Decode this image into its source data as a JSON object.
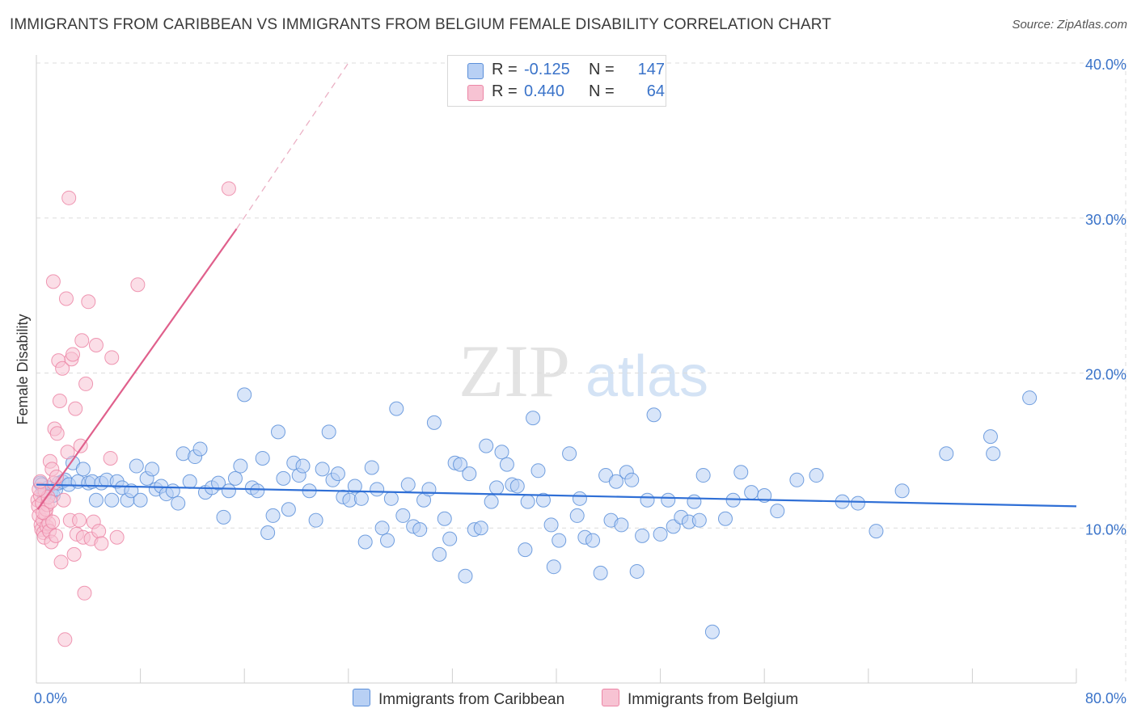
{
  "title": "IMMIGRANTS FROM CARIBBEAN VS IMMIGRANTS FROM BELGIUM FEMALE DISABILITY CORRELATION CHART",
  "source": "Source: ZipAtlas.com",
  "watermark": {
    "zip": "ZIP",
    "atlas": "atlas"
  },
  "colors": {
    "blue": "#5b8fd9",
    "blue_fill": "#b8d0f4",
    "blue_line": "#2f6fd6",
    "pink": "#ec86a6",
    "pink_fill": "#f7c3d3",
    "pink_line": "#e0608c",
    "axis_label": "#3a73c9"
  },
  "legend": {
    "rows": [
      {
        "r_label": "R =",
        "r_value": "-0.125",
        "n_label": "N =",
        "n_value": "147"
      },
      {
        "r_label": "R =",
        "r_value": "0.440",
        "n_label": "N =",
        "n_value": "64"
      }
    ]
  },
  "bottom_legend": {
    "series1": "Immigrants from Caribbean",
    "series2": "Immigrants from Belgium"
  },
  "chart_data": {
    "type": "scatter",
    "xlabel": "",
    "ylabel": "Female Disability",
    "xlim": [
      0,
      80
    ],
    "ylim": [
      0,
      40
    ],
    "x_ticks": [
      "0.0%",
      "80.0%"
    ],
    "y_ticks": [
      {
        "value": 10,
        "label": "10.0%"
      },
      {
        "value": 20,
        "label": "20.0%"
      },
      {
        "value": 30,
        "label": "30.0%"
      },
      {
        "value": 40,
        "label": "40.0%"
      }
    ],
    "grid": true,
    "series": [
      {
        "name": "Immigrants from Caribbean",
        "color": "#5b8fd9",
        "r": -0.125,
        "n": 147,
        "trend": {
          "x1": 0,
          "y1": 12.8,
          "x2": 80,
          "y2": 11.4
        },
        "points": [
          [
            0.3,
            12.9
          ],
          [
            0.5,
            12.4
          ],
          [
            0.7,
            12.2
          ],
          [
            0.9,
            12.6
          ],
          [
            1.1,
            12.3
          ],
          [
            1.3,
            12.1
          ],
          [
            1.5,
            12.5
          ],
          [
            1.7,
            12.9
          ],
          [
            2.0,
            13.0
          ],
          [
            2.2,
            13.1
          ],
          [
            2.5,
            12.8
          ],
          [
            2.8,
            14.2
          ],
          [
            3.2,
            13.0
          ],
          [
            3.6,
            13.8
          ],
          [
            4.0,
            12.9
          ],
          [
            4.3,
            13.0
          ],
          [
            4.6,
            11.8
          ],
          [
            5.0,
            12.9
          ],
          [
            5.4,
            13.1
          ],
          [
            5.8,
            11.8
          ],
          [
            6.2,
            13.0
          ],
          [
            6.6,
            12.6
          ],
          [
            7.0,
            11.8
          ],
          [
            7.3,
            12.4
          ],
          [
            7.7,
            14.0
          ],
          [
            8.0,
            11.8
          ],
          [
            8.5,
            13.2
          ],
          [
            8.9,
            13.8
          ],
          [
            9.2,
            12.5
          ],
          [
            9.6,
            12.7
          ],
          [
            10.0,
            12.2
          ],
          [
            10.5,
            12.4
          ],
          [
            10.9,
            11.6
          ],
          [
            11.3,
            14.8
          ],
          [
            11.8,
            13.0
          ],
          [
            12.2,
            14.6
          ],
          [
            12.6,
            15.1
          ],
          [
            13.0,
            12.3
          ],
          [
            13.5,
            12.6
          ],
          [
            14.0,
            12.9
          ],
          [
            14.4,
            10.7
          ],
          [
            14.8,
            12.4
          ],
          [
            15.3,
            13.2
          ],
          [
            15.7,
            14.0
          ],
          [
            16.0,
            18.6
          ],
          [
            16.6,
            12.6
          ],
          [
            17.0,
            12.4
          ],
          [
            17.4,
            14.5
          ],
          [
            17.8,
            9.7
          ],
          [
            18.2,
            10.8
          ],
          [
            18.6,
            16.2
          ],
          [
            19.0,
            13.2
          ],
          [
            19.4,
            11.2
          ],
          [
            19.8,
            14.2
          ],
          [
            20.2,
            13.4
          ],
          [
            20.5,
            14.0
          ],
          [
            21.0,
            12.4
          ],
          [
            21.5,
            10.5
          ],
          [
            22.0,
            13.8
          ],
          [
            22.5,
            16.2
          ],
          [
            22.8,
            13.1
          ],
          [
            23.2,
            13.5
          ],
          [
            23.6,
            12.0
          ],
          [
            24.1,
            11.8
          ],
          [
            24.5,
            12.7
          ],
          [
            25.0,
            11.9
          ],
          [
            25.3,
            9.1
          ],
          [
            25.8,
            13.9
          ],
          [
            26.2,
            12.5
          ],
          [
            26.6,
            10.0
          ],
          [
            27.0,
            9.2
          ],
          [
            27.3,
            11.9
          ],
          [
            27.7,
            17.7
          ],
          [
            28.2,
            10.8
          ],
          [
            28.6,
            12.8
          ],
          [
            29.0,
            10.1
          ],
          [
            29.5,
            9.9
          ],
          [
            29.8,
            11.8
          ],
          [
            30.2,
            12.5
          ],
          [
            30.6,
            16.8
          ],
          [
            31.0,
            8.3
          ],
          [
            31.4,
            10.6
          ],
          [
            31.8,
            9.3
          ],
          [
            32.2,
            14.2
          ],
          [
            32.6,
            14.1
          ],
          [
            33.0,
            6.9
          ],
          [
            33.3,
            13.5
          ],
          [
            33.7,
            9.9
          ],
          [
            34.2,
            10.0
          ],
          [
            34.6,
            15.3
          ],
          [
            35.0,
            11.7
          ],
          [
            35.4,
            12.6
          ],
          [
            35.8,
            14.9
          ],
          [
            36.2,
            14.1
          ],
          [
            36.6,
            12.8
          ],
          [
            37.0,
            12.7
          ],
          [
            37.6,
            8.6
          ],
          [
            37.8,
            11.7
          ],
          [
            38.2,
            17.1
          ],
          [
            38.6,
            13.7
          ],
          [
            39.0,
            11.8
          ],
          [
            39.6,
            10.2
          ],
          [
            39.8,
            7.5
          ],
          [
            40.2,
            9.2
          ],
          [
            41.0,
            14.8
          ],
          [
            41.6,
            10.8
          ],
          [
            41.8,
            11.9
          ],
          [
            42.2,
            9.4
          ],
          [
            42.8,
            9.2
          ],
          [
            43.4,
            7.1
          ],
          [
            43.8,
            13.4
          ],
          [
            44.2,
            10.5
          ],
          [
            44.6,
            13.0
          ],
          [
            45.0,
            10.2
          ],
          [
            45.4,
            13.6
          ],
          [
            45.8,
            13.1
          ],
          [
            46.2,
            7.2
          ],
          [
            46.6,
            9.5
          ],
          [
            47.0,
            11.8
          ],
          [
            47.5,
            17.3
          ],
          [
            48.0,
            9.6
          ],
          [
            48.6,
            11.8
          ],
          [
            49.0,
            10.1
          ],
          [
            49.6,
            10.7
          ],
          [
            50.2,
            10.4
          ],
          [
            50.6,
            11.7
          ],
          [
            51.0,
            10.5
          ],
          [
            51.3,
            13.4
          ],
          [
            52.0,
            3.3
          ],
          [
            53.0,
            10.6
          ],
          [
            53.6,
            11.8
          ],
          [
            54.2,
            13.6
          ],
          [
            55.0,
            12.3
          ],
          [
            56.0,
            12.1
          ],
          [
            57.0,
            11.1
          ],
          [
            58.5,
            13.1
          ],
          [
            60.0,
            13.4
          ],
          [
            62.0,
            11.7
          ],
          [
            63.2,
            11.6
          ],
          [
            64.6,
            9.8
          ],
          [
            66.6,
            12.4
          ],
          [
            70.0,
            14.8
          ],
          [
            73.4,
            15.9
          ],
          [
            73.6,
            14.8
          ],
          [
            76.4,
            18.4
          ],
          [
            0.4,
            12.8
          ],
          [
            0.6,
            12.1
          ]
        ]
      },
      {
        "name": "Immigrants from Belgium",
        "color": "#ec86a6",
        "r": 0.44,
        "n": 64,
        "trend": {
          "x1": 0.1,
          "y1": 11.2,
          "x2": 15.4,
          "y2": 29.3,
          "dash_x2": 24,
          "dash_y2": 40
        },
        "points": [
          [
            0.1,
            11.8
          ],
          [
            0.15,
            11.4
          ],
          [
            0.2,
            10.8
          ],
          [
            0.3,
            12.1
          ],
          [
            0.35,
            10.2
          ],
          [
            0.4,
            9.9
          ],
          [
            0.45,
            11.6
          ],
          [
            0.5,
            10.5
          ],
          [
            0.55,
            9.7
          ],
          [
            0.6,
            9.4
          ],
          [
            0.65,
            12.4
          ],
          [
            0.7,
            10.9
          ],
          [
            0.75,
            11.2
          ],
          [
            0.8,
            10.1
          ],
          [
            0.85,
            11.5
          ],
          [
            0.9,
            12.0
          ],
          [
            0.95,
            10.3
          ],
          [
            1.0,
            9.8
          ],
          [
            1.05,
            14.3
          ],
          [
            1.1,
            11.7
          ],
          [
            1.15,
            9.1
          ],
          [
            1.2,
            13.8
          ],
          [
            1.25,
            10.4
          ],
          [
            1.3,
            25.9
          ],
          [
            1.35,
            12.9
          ],
          [
            1.4,
            16.4
          ],
          [
            1.5,
            9.5
          ],
          [
            1.55,
            13.3
          ],
          [
            1.6,
            16.1
          ],
          [
            1.7,
            20.8
          ],
          [
            1.8,
            18.2
          ],
          [
            1.9,
            7.8
          ],
          [
            2.0,
            20.3
          ],
          [
            2.1,
            11.8
          ],
          [
            2.2,
            2.8
          ],
          [
            2.3,
            24.8
          ],
          [
            2.4,
            14.9
          ],
          [
            2.5,
            31.3
          ],
          [
            2.6,
            10.5
          ],
          [
            2.7,
            20.9
          ],
          [
            2.8,
            21.2
          ],
          [
            2.9,
            8.3
          ],
          [
            3.0,
            17.7
          ],
          [
            3.1,
            9.6
          ],
          [
            3.3,
            10.5
          ],
          [
            3.4,
            15.3
          ],
          [
            3.5,
            22.1
          ],
          [
            3.6,
            9.4
          ],
          [
            3.7,
            5.8
          ],
          [
            3.8,
            19.3
          ],
          [
            4.0,
            24.6
          ],
          [
            4.2,
            9.3
          ],
          [
            4.4,
            10.4
          ],
          [
            4.6,
            21.8
          ],
          [
            4.8,
            9.8
          ],
          [
            5.0,
            9.0
          ],
          [
            5.7,
            14.5
          ],
          [
            5.8,
            21.0
          ],
          [
            6.2,
            9.4
          ],
          [
            7.8,
            25.7
          ],
          [
            14.8,
            31.9
          ],
          [
            0.2,
            12.5
          ],
          [
            0.3,
            13.0
          ],
          [
            0.5,
            11.0
          ]
        ]
      }
    ]
  }
}
